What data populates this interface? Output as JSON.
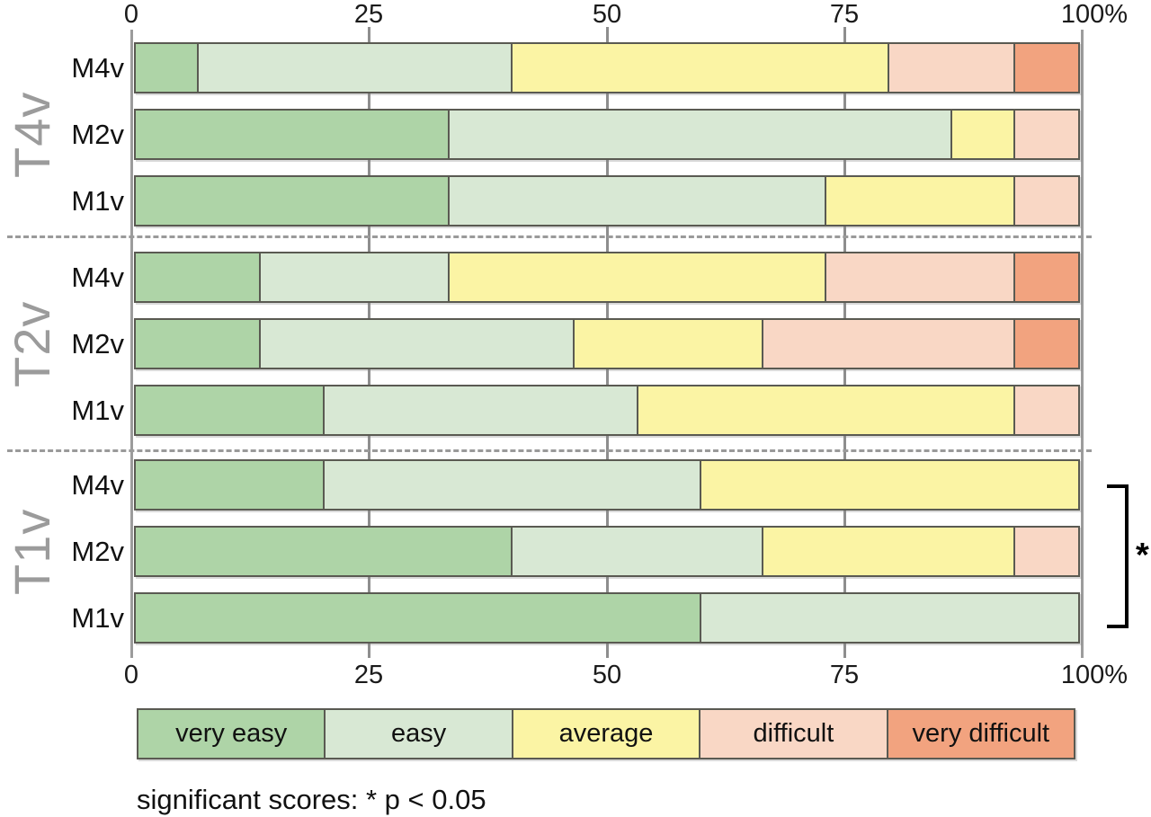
{
  "chart_data": {
    "type": "bar",
    "subtype": "horizontal-stacked-percentage",
    "title": "",
    "xlabel": "",
    "ylabel": "",
    "axis": {
      "range": [
        0,
        100
      ],
      "tick_values": [
        0,
        25,
        50,
        75,
        100
      ],
      "tick_labels": [
        "0",
        "25",
        "50",
        "75",
        "100%"
      ],
      "grid": true,
      "axis_position": "top-and-bottom"
    },
    "legend": {
      "position": "bottom",
      "entries": [
        "very easy",
        "easy",
        "average",
        "difficult",
        "very difficult"
      ]
    },
    "colors": {
      "very_easy": "#aed4a7",
      "easy": "#d8e8d4",
      "average": "#fbf4a4",
      "difficult": "#f9d7c5",
      "very_difficult": "#f2a37f",
      "bar_border": "#5a5a52",
      "grid": "#8e8e8e",
      "group_label": "#9b9b9b"
    },
    "groups": [
      {
        "label": "T4v",
        "rows": [
          {
            "label": "M4v",
            "values": [
              6.7,
              33.3,
              40.0,
              13.3,
              6.7
            ]
          },
          {
            "label": "M2v",
            "values": [
              33.3,
              53.3,
              6.7,
              6.7,
              0
            ]
          },
          {
            "label": "M1v",
            "values": [
              33.3,
              40.0,
              20.0,
              6.7,
              0
            ]
          }
        ]
      },
      {
        "label": "T2v",
        "rows": [
          {
            "label": "M4v",
            "values": [
              13.3,
              20.0,
              40.0,
              20.0,
              6.7
            ]
          },
          {
            "label": "M2v",
            "values": [
              13.3,
              33.3,
              20.0,
              26.7,
              6.7
            ]
          },
          {
            "label": "M1v",
            "values": [
              20.0,
              33.3,
              40.0,
              6.7,
              0
            ]
          }
        ]
      },
      {
        "label": "T1v",
        "rows": [
          {
            "label": "M4v",
            "values": [
              20.0,
              40.0,
              40.0,
              0,
              0
            ]
          },
          {
            "label": "M2v",
            "values": [
              40.0,
              26.7,
              26.7,
              6.7,
              0
            ]
          },
          {
            "label": "M1v",
            "values": [
              60.0,
              40.0,
              0,
              0,
              0
            ]
          }
        ]
      }
    ],
    "significance": {
      "bracket_group": "T1v",
      "symbol": "*"
    },
    "footnote": "significant scores: * p < 0.05"
  }
}
